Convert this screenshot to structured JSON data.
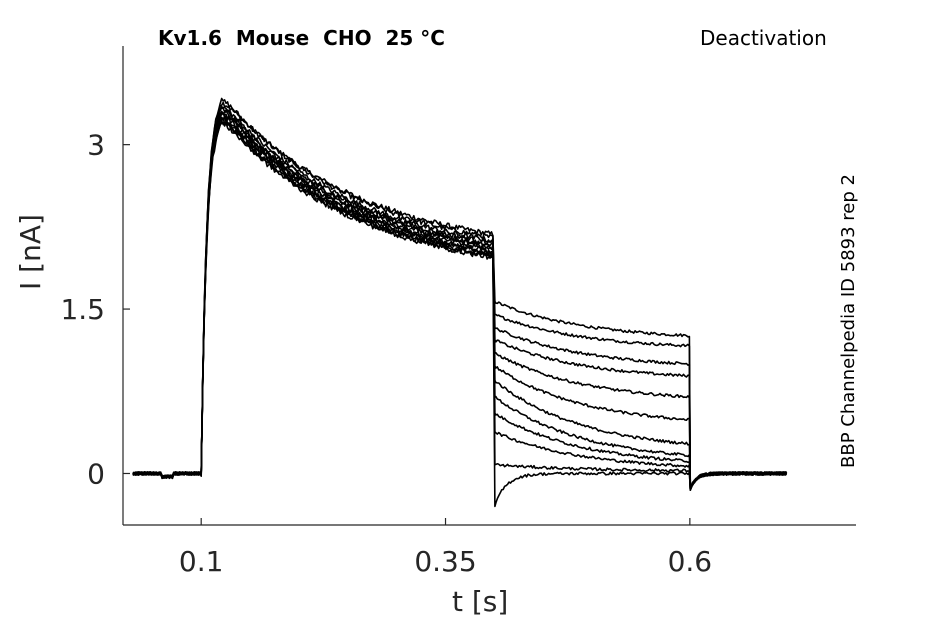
{
  "chart_data": {
    "type": "line",
    "title": "Kv1.6  Mouse  CHO  25 °C",
    "protocol": "Deactivation",
    "annotation": "BBP Channelpedia ID 5893 rep 2",
    "xlabel": "t [s]",
    "ylabel": "I [nA]",
    "xlim": [
      0.02,
      0.77
    ],
    "ylim": [
      -0.47,
      3.9
    ],
    "xticks": [
      0.1,
      0.35,
      0.6
    ],
    "xtick_labels": [
      "0.1",
      "0.35",
      "0.6"
    ],
    "yticks": [
      0,
      1.5,
      3
    ],
    "ytick_labels": [
      "0",
      "1.5",
      "3"
    ],
    "grid": false,
    "legend": "none",
    "line_color": "#000000",
    "protocol_times": {
      "baseline_start": 0.03,
      "step_on": 0.1,
      "step_off": 0.4,
      "tail_off": 0.6,
      "end": 0.7
    },
    "series": [
      {
        "peak": 3.44,
        "end_of_step": 2.18,
        "tail_start": 1.57,
        "tail_end": 1.22
      },
      {
        "peak": 3.46,
        "end_of_step": 2.15,
        "tail_start": 1.45,
        "tail_end": 1.13
      },
      {
        "peak": 3.4,
        "end_of_step": 2.12,
        "tail_start": 1.33,
        "tail_end": 0.96
      },
      {
        "peak": 3.38,
        "end_of_step": 2.1,
        "tail_start": 1.22,
        "tail_end": 0.85
      },
      {
        "peak": 3.36,
        "end_of_step": 2.08,
        "tail_start": 1.1,
        "tail_end": 0.65
      },
      {
        "peak": 3.34,
        "end_of_step": 2.06,
        "tail_start": 0.98,
        "tail_end": 0.43
      },
      {
        "peak": 3.33,
        "end_of_step": 2.04,
        "tail_start": 0.85,
        "tail_end": 0.2
      },
      {
        "peak": 3.31,
        "end_of_step": 2.02,
        "tail_start": 0.7,
        "tail_end": 0.1
      },
      {
        "peak": 3.3,
        "end_of_step": 2.01,
        "tail_start": 0.55,
        "tail_end": 0.06
      },
      {
        "peak": 3.28,
        "end_of_step": 1.99,
        "tail_start": 0.38,
        "tail_end": 0.03
      },
      {
        "peak": 3.27,
        "end_of_step": 1.98,
        "tail_start": 0.08,
        "tail_end": 0.02
      },
      {
        "peak": 3.25,
        "end_of_step": 1.97,
        "tail_start": -0.3,
        "tail_end": 0.0
      }
    ]
  }
}
